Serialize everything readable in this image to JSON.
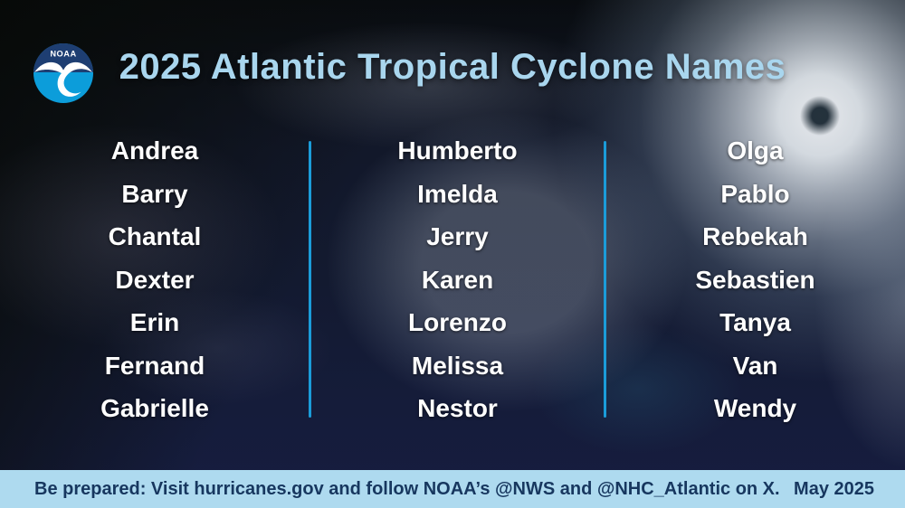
{
  "header": {
    "logo_text": "NOAA",
    "title": "2025 Atlantic Tropical Cyclone Names"
  },
  "name_columns": [
    {
      "names": [
        "Andrea",
        "Barry",
        "Chantal",
        "Dexter",
        "Erin",
        "Fernand",
        "Gabrielle"
      ]
    },
    {
      "names": [
        "Humberto",
        "Imelda",
        "Jerry",
        "Karen",
        "Lorenzo",
        "Melissa",
        "Nestor"
      ]
    },
    {
      "names": [
        "Olga",
        "Pablo",
        "Rebekah",
        "Sebastien",
        "Tanya",
        "Van",
        "Wendy"
      ]
    }
  ],
  "footer": {
    "message": "Be prepared: Visit hurricanes.gov and follow NOAA’s @NWS and @NHC_Atlantic on X.",
    "date": "May 2025"
  },
  "colors": {
    "title_text": "#a9d6ee",
    "name_text": "#ffffff",
    "divider_blue": "#1b9cd9",
    "footer_bg": "#aedaef",
    "footer_text": "#17375f",
    "logo_dark_blue": "#1e3e72",
    "logo_light_blue": "#0c9dda"
  }
}
